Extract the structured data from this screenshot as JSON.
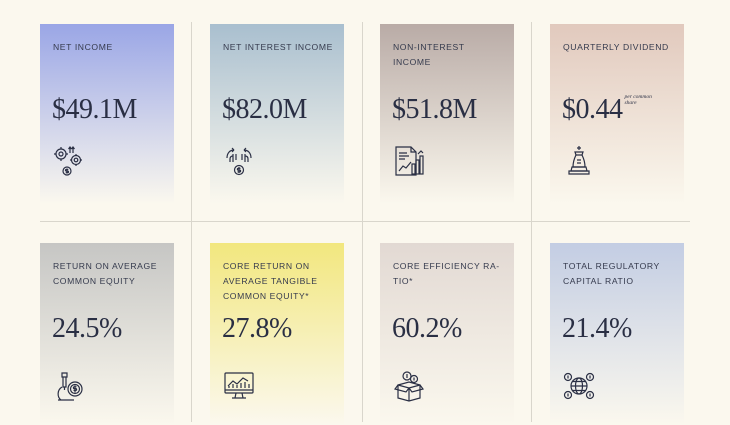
{
  "cards": [
    {
      "label": "NET INCOME",
      "value": "$49.1M",
      "icon": "gears-dollar-icon",
      "bg_top": "#9aa6e6"
    },
    {
      "label": "NET INTEREST INCOME",
      "value": "$82.0M",
      "icon": "hands-dollar-icon",
      "bg_top": "#a9bfcf"
    },
    {
      "label": "NON-INTEREST INCOME",
      "value": "$51.8M",
      "icon": "report-chart-icon",
      "bg_top": "#b9aba6"
    },
    {
      "label": "QUARTERLY DIVIDEND",
      "value": "$0.44",
      "value_note": "per common share",
      "icon": "chess-piece-icon",
      "bg_top": "#e1c9bd"
    },
    {
      "label": "RETURN ON AVERAGE COMMON EQUITY",
      "value": "24.5%",
      "icon": "microscope-dollar-icon",
      "bg_top": "#c6c6c4"
    },
    {
      "label": "CORE RETURN ON AVERAGE TANGIBLE COMMON EQUITY*",
      "value": "27.8%",
      "icon": "monitor-chart-icon",
      "bg_top": "#f2e77e"
    },
    {
      "label": "CORE EFFICIENCY RA-TIO*",
      "value": "60.2%",
      "icon": "box-coins-icon",
      "bg_top": "#e2d9d3"
    },
    {
      "label": "TOTAL REGULATORY CAPITAL RATIO",
      "value": "21.4%",
      "icon": "globe-dollar-icon",
      "bg_top": "#c3cde3"
    }
  ]
}
